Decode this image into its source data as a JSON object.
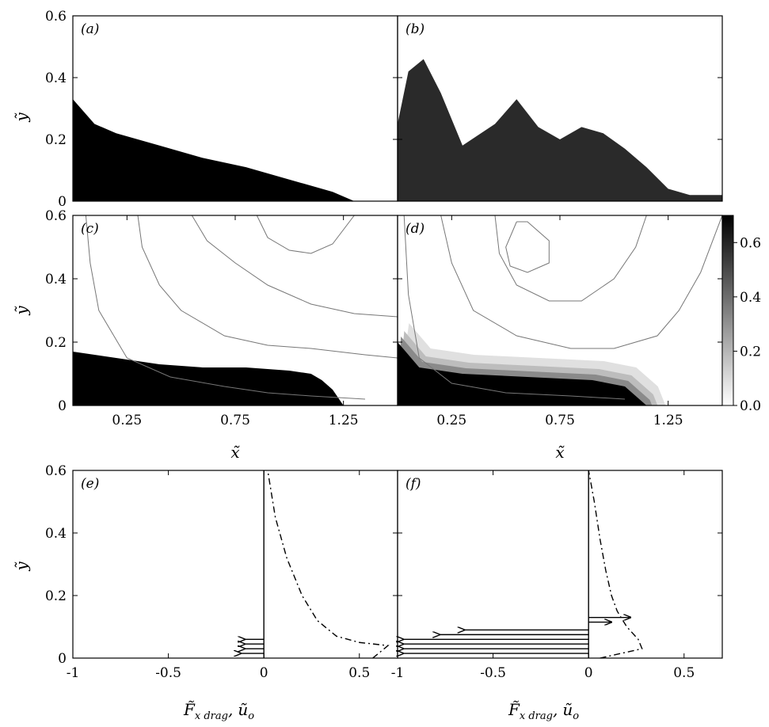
{
  "axis_labels": {
    "y": "ỹ",
    "x": "x̃",
    "drag_f": "F̃",
    "drag_sub": "x drag",
    "drag_comma": ",",
    "drag_u": "ũ",
    "drag_u_sub": "o"
  },
  "colorbar": {
    "ticks": [
      "0.0",
      "0.2",
      "0.4",
      "0.6"
    ],
    "values": [
      0.0,
      0.2,
      0.4,
      0.6
    ],
    "max": 0.7,
    "scale": "grayscale, white (0) to black (0.7)"
  },
  "chart_data": [
    {
      "panel": "(a)",
      "type": "heatmap",
      "description_source": "dense current fill (image)",
      "xlim": [
        0,
        1.5
      ],
      "ylim": [
        0,
        0.6
      ],
      "yticks": [
        "0",
        "0.2",
        "0.4",
        "0.6"
      ],
      "interface_height": {
        "x": [
          0,
          0.1,
          0.2,
          0.4,
          0.6,
          0.8,
          1.0,
          1.2,
          1.3,
          1.5
        ],
        "y": [
          0.33,
          0.25,
          0.22,
          0.18,
          0.14,
          0.11,
          0.07,
          0.03,
          0.0,
          0.0
        ]
      }
    },
    {
      "panel": "(b)",
      "type": "heatmap",
      "xlim": [
        0,
        1.5
      ],
      "ylim": [
        0,
        0.6
      ],
      "interface_height": {
        "x": [
          0,
          0.05,
          0.12,
          0.2,
          0.3,
          0.45,
          0.55,
          0.65,
          0.75,
          0.85,
          0.95,
          1.05,
          1.15,
          1.25,
          1.35,
          1.5
        ],
        "y": [
          0.25,
          0.42,
          0.46,
          0.35,
          0.18,
          0.25,
          0.33,
          0.24,
          0.2,
          0.24,
          0.22,
          0.17,
          0.11,
          0.04,
          0.02,
          0.02
        ]
      }
    },
    {
      "panel": "(c)",
      "type": "heatmap",
      "xlim": [
        0,
        1.5
      ],
      "ylim": [
        0,
        0.6
      ],
      "xticks": [
        "0.25",
        "0.75",
        "1.25"
      ],
      "xtick_values": [
        0.25,
        0.75,
        1.25
      ],
      "yticks": [
        "0",
        "0.2",
        "0.4",
        "0.6"
      ],
      "interface_height": {
        "x": [
          0,
          0.2,
          0.4,
          0.6,
          0.8,
          1.0,
          1.1,
          1.15,
          1.2,
          1.25
        ],
        "y": [
          0.17,
          0.15,
          0.13,
          0.12,
          0.12,
          0.11,
          0.1,
          0.08,
          0.05,
          0.0
        ]
      },
      "streamlines": [
        {
          "x": [
            0.06,
            0.08,
            0.12,
            0.25,
            0.45,
            0.7,
            0.9,
            1.1,
            1.35
          ],
          "y": [
            0.6,
            0.45,
            0.3,
            0.15,
            0.09,
            0.06,
            0.04,
            0.03,
            0.02
          ]
        },
        {
          "x": [
            0.3,
            0.32,
            0.4,
            0.5,
            0.7,
            0.9,
            1.1,
            1.35,
            1.5
          ],
          "y": [
            0.6,
            0.5,
            0.38,
            0.3,
            0.22,
            0.19,
            0.18,
            0.16,
            0.15
          ]
        },
        {
          "x": [
            0.55,
            0.62,
            0.75,
            0.9,
            1.1,
            1.3,
            1.5
          ],
          "y": [
            0.6,
            0.52,
            0.45,
            0.38,
            0.32,
            0.29,
            0.28
          ]
        },
        {
          "x": [
            0.85,
            0.9,
            1.0,
            1.1,
            1.2,
            1.3
          ],
          "y": [
            0.6,
            0.53,
            0.49,
            0.48,
            0.51,
            0.6
          ]
        }
      ]
    },
    {
      "panel": "(d)",
      "type": "heatmap",
      "xlim": [
        0,
        1.5
      ],
      "ylim": [
        0,
        0.6
      ],
      "xticks": [
        "0.25",
        "0.75",
        "1.25"
      ],
      "xtick_values": [
        0.25,
        0.75,
        1.25
      ],
      "interface_height": {
        "x": [
          0,
          0.1,
          0.3,
          0.6,
          0.9,
          1.05,
          1.1,
          1.15
        ],
        "y": [
          0.2,
          0.12,
          0.1,
          0.09,
          0.08,
          0.06,
          0.03,
          0.0
        ]
      },
      "streamlines": [
        {
          "x": [
            0.03,
            0.05,
            0.1,
            0.25,
            0.5,
            0.8,
            1.05
          ],
          "y": [
            0.6,
            0.35,
            0.15,
            0.07,
            0.04,
            0.03,
            0.02
          ]
        },
        {
          "x": [
            0.2,
            0.25,
            0.35,
            0.55,
            0.8,
            1.0,
            1.2,
            1.3,
            1.4,
            1.5
          ],
          "y": [
            0.6,
            0.45,
            0.3,
            0.22,
            0.18,
            0.18,
            0.22,
            0.3,
            0.42,
            0.6
          ]
        },
        {
          "x": [
            0.45,
            0.47,
            0.55,
            0.7,
            0.85,
            1.0,
            1.1,
            1.15
          ],
          "y": [
            0.6,
            0.48,
            0.38,
            0.33,
            0.33,
            0.4,
            0.5,
            0.6
          ]
        },
        {
          "x": [
            0.55,
            0.5,
            0.52,
            0.6,
            0.7,
            0.7,
            0.6,
            0.55
          ],
          "y": [
            0.58,
            0.5,
            0.44,
            0.42,
            0.45,
            0.52,
            0.58,
            0.58
          ]
        }
      ]
    },
    {
      "panel": "(e)",
      "type": "line",
      "xlim": [
        -1,
        0.7
      ],
      "ylim": [
        0,
        0.6
      ],
      "xticks": [
        "-1",
        "-0.5",
        "0",
        "0.5"
      ],
      "xtick_values": [
        -1,
        -0.5,
        0,
        0.5
      ],
      "yticks": [
        "0",
        "0.2",
        "0.4",
        "0.6"
      ],
      "drag_arrows": [
        {
          "y": 0.015,
          "value": -0.12
        },
        {
          "y": 0.03,
          "value": -0.1
        },
        {
          "y": 0.045,
          "value": -0.1
        },
        {
          "y": 0.06,
          "value": -0.1
        }
      ],
      "velocity_profile": {
        "x": [
          0.57,
          0.63,
          0.65,
          0.5,
          0.38,
          0.28,
          0.2,
          0.12,
          0.06,
          0.02
        ],
        "y": [
          0.0,
          0.03,
          0.04,
          0.05,
          0.07,
          0.12,
          0.2,
          0.32,
          0.45,
          0.6
        ]
      }
    },
    {
      "panel": "(f)",
      "type": "line",
      "xlim": [
        -1,
        0.7
      ],
      "ylim": [
        0,
        0.6
      ],
      "xticks": [
        "-1",
        "-0.5",
        "0",
        "0.5"
      ],
      "xtick_values": [
        -1,
        -0.5,
        0,
        0.5
      ],
      "drag_arrows": [
        {
          "y": 0.015,
          "value": -0.97
        },
        {
          "y": 0.03,
          "value": -0.97
        },
        {
          "y": 0.045,
          "value": -0.97
        },
        {
          "y": 0.06,
          "value": -0.97
        },
        {
          "y": 0.075,
          "value": -0.78
        },
        {
          "y": 0.09,
          "value": -0.65
        },
        {
          "y": 0.115,
          "value": 0.12
        },
        {
          "y": 0.13,
          "value": 0.22
        }
      ],
      "velocity_profile": {
        "x": [
          0.06,
          0.28,
          0.26,
          0.2,
          0.15,
          0.12,
          0.09,
          0.06,
          0.03,
          0.0
        ],
        "y": [
          0.0,
          0.03,
          0.06,
          0.1,
          0.15,
          0.2,
          0.28,
          0.38,
          0.5,
          0.6
        ]
      }
    }
  ]
}
